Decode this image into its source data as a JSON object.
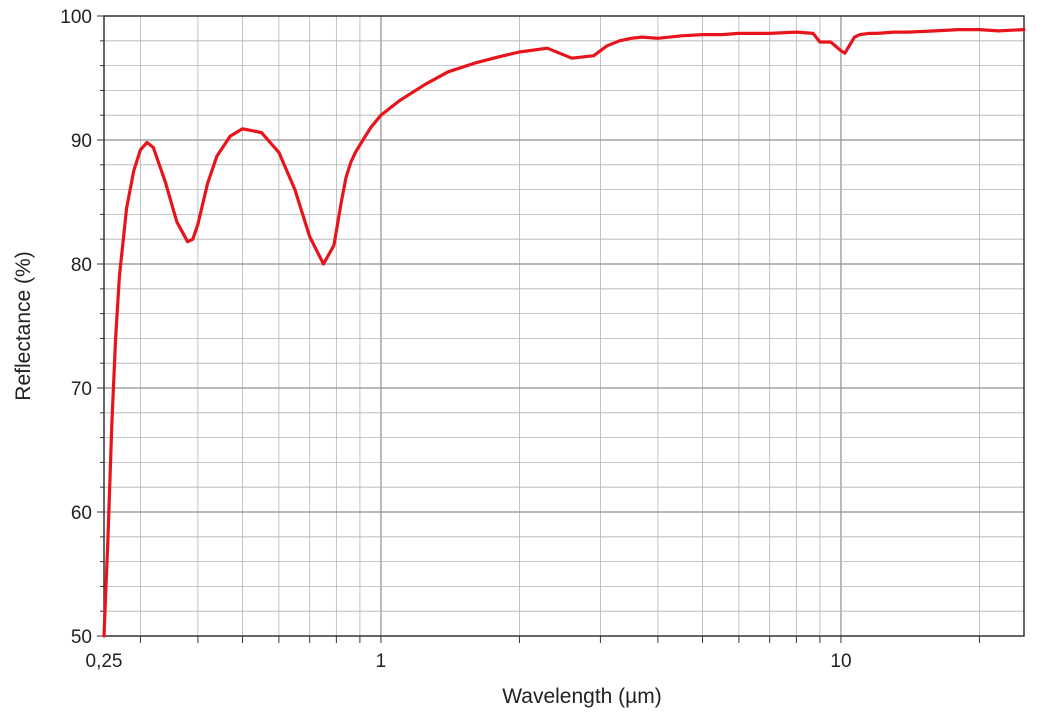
{
  "chart_data": {
    "type": "line",
    "title": "",
    "xlabel": "Wavelength (µm)",
    "ylabel": "Reflectance (%)",
    "x_scale": "log",
    "xlim": [
      0.25,
      25
    ],
    "ylim": [
      50,
      100
    ],
    "grid": true,
    "legend": "none",
    "x_ticks": [
      {
        "value": 0.25,
        "label": "0,25"
      },
      {
        "value": 1,
        "label": "1"
      },
      {
        "value": 10,
        "label": "10"
      }
    ],
    "y_ticks": [
      {
        "value": 50,
        "label": "50"
      },
      {
        "value": 60,
        "label": "60"
      },
      {
        "value": 70,
        "label": "70"
      },
      {
        "value": 80,
        "label": "80"
      },
      {
        "value": 90,
        "label": "90"
      },
      {
        "value": 100,
        "label": "100"
      }
    ],
    "colors": {
      "line": "#e8141c",
      "grid": "#b4b4b4",
      "axis": "#333333"
    },
    "series": [
      {
        "x": [
          0.25,
          0.255,
          0.26,
          0.265,
          0.27,
          0.28,
          0.29,
          0.3,
          0.31,
          0.32,
          0.34,
          0.36,
          0.38,
          0.39,
          0.4,
          0.42,
          0.44,
          0.47,
          0.5,
          0.55,
          0.6,
          0.65,
          0.7,
          0.75,
          0.79,
          0.82,
          0.84,
          0.86,
          0.88,
          0.9,
          0.95,
          1.0,
          1.1,
          1.25,
          1.4,
          1.6,
          1.8,
          2.0,
          2.3,
          2.6,
          2.9,
          3.1,
          3.3,
          3.5,
          3.7,
          4.0,
          4.5,
          5.0,
          5.2,
          5.5,
          6.0,
          7.0,
          8.0,
          8.7,
          9.0,
          9.5,
          10.0,
          10.2,
          10.7,
          11.0,
          11.5,
          12.0,
          13.0,
          14.0,
          16.0,
          18.0,
          20.0,
          22.0,
          25.0
        ],
        "y": [
          49.5,
          58.0,
          67.0,
          74.0,
          79.0,
          84.5,
          87.5,
          89.2,
          89.8,
          89.4,
          86.6,
          83.4,
          81.8,
          82.0,
          83.2,
          86.5,
          88.7,
          90.3,
          90.9,
          90.6,
          89.0,
          86.0,
          82.2,
          80.0,
          81.5,
          85.0,
          87.0,
          88.2,
          89.0,
          89.6,
          91.0,
          92.0,
          93.2,
          94.5,
          95.5,
          96.2,
          96.7,
          97.1,
          97.4,
          96.6,
          96.8,
          97.6,
          98.0,
          98.2,
          98.3,
          98.2,
          98.4,
          98.5,
          98.5,
          98.5,
          98.6,
          98.6,
          98.7,
          98.6,
          97.9,
          97.9,
          97.2,
          97.0,
          98.3,
          98.5,
          98.6,
          98.6,
          98.7,
          98.7,
          98.8,
          98.9,
          98.9,
          98.8,
          98.9
        ]
      }
    ]
  }
}
